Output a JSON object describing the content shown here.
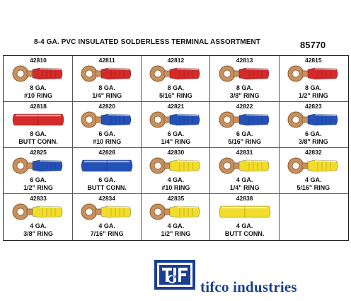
{
  "header": {
    "title": "8-4 GA. PVC INSULATED SOLDERLESS TERMINAL ASSORTMENT",
    "kit_number": "85770"
  },
  "colors": {
    "red": "#d42a2a",
    "blue": "#2451b8",
    "yellow": "#f2dd2a",
    "copper": "#c8905c",
    "brand": "#1a3e92"
  },
  "items": [
    {
      "part": "42810",
      "gauge": "8 GA.",
      "desc": "#10 RING",
      "color": "red",
      "kind": "ring"
    },
    {
      "part": "42811",
      "gauge": "8 GA.",
      "desc": "1/4\" RING",
      "color": "red",
      "kind": "ring"
    },
    {
      "part": "42812",
      "gauge": "8 GA.",
      "desc": "5/16\" RING",
      "color": "red",
      "kind": "ring"
    },
    {
      "part": "42813",
      "gauge": "8 GA.",
      "desc": "3/8\" RING",
      "color": "red",
      "kind": "ring"
    },
    {
      "part": "42815",
      "gauge": "8 GA.",
      "desc": "1/2\" RING",
      "color": "red",
      "kind": "ring"
    },
    {
      "part": "42818",
      "gauge": "8 GA.",
      "desc": "BUTT CONN.",
      "color": "red",
      "kind": "butt"
    },
    {
      "part": "42820",
      "gauge": "6 GA.",
      "desc": "#10 RING",
      "color": "blue",
      "kind": "ring"
    },
    {
      "part": "42821",
      "gauge": "6 GA.",
      "desc": "1/4\" RING",
      "color": "blue",
      "kind": "ring"
    },
    {
      "part": "42822",
      "gauge": "6 GA.",
      "desc": "5/16\" RING",
      "color": "blue",
      "kind": "ring"
    },
    {
      "part": "42823",
      "gauge": "6 GA.",
      "desc": "3/8\" RING",
      "color": "blue",
      "kind": "ring"
    },
    {
      "part": "42825",
      "gauge": "6 GA.",
      "desc": "1/2\" RING",
      "color": "blue",
      "kind": "ring"
    },
    {
      "part": "42828",
      "gauge": "6 GA.",
      "desc": "BUTT CONN.",
      "color": "blue",
      "kind": "butt"
    },
    {
      "part": "42830",
      "gauge": "4 GA.",
      "desc": "#10 RING",
      "color": "yellow",
      "kind": "ring"
    },
    {
      "part": "42831",
      "gauge": "4 GA.",
      "desc": "1/4\" RING",
      "color": "yellow",
      "kind": "ring"
    },
    {
      "part": "42832",
      "gauge": "4 GA.",
      "desc": "5/16\" RING",
      "color": "yellow",
      "kind": "ring"
    },
    {
      "part": "42833",
      "gauge": "4 GA.",
      "desc": "3/8\" RING",
      "color": "yellow",
      "kind": "ring"
    },
    {
      "part": "42834",
      "gauge": "4 GA.",
      "desc": "7/16\" RING",
      "color": "yellow",
      "kind": "ring"
    },
    {
      "part": "42835",
      "gauge": "4 GA.",
      "desc": "1/2\" RING",
      "color": "yellow",
      "kind": "ring"
    },
    {
      "part": "42838",
      "gauge": "4 GA.",
      "desc": "BUTT CONN.",
      "color": "yellow",
      "kind": "butt"
    }
  ],
  "brand": {
    "logo_text": "TIF",
    "name": "tifco industries"
  }
}
